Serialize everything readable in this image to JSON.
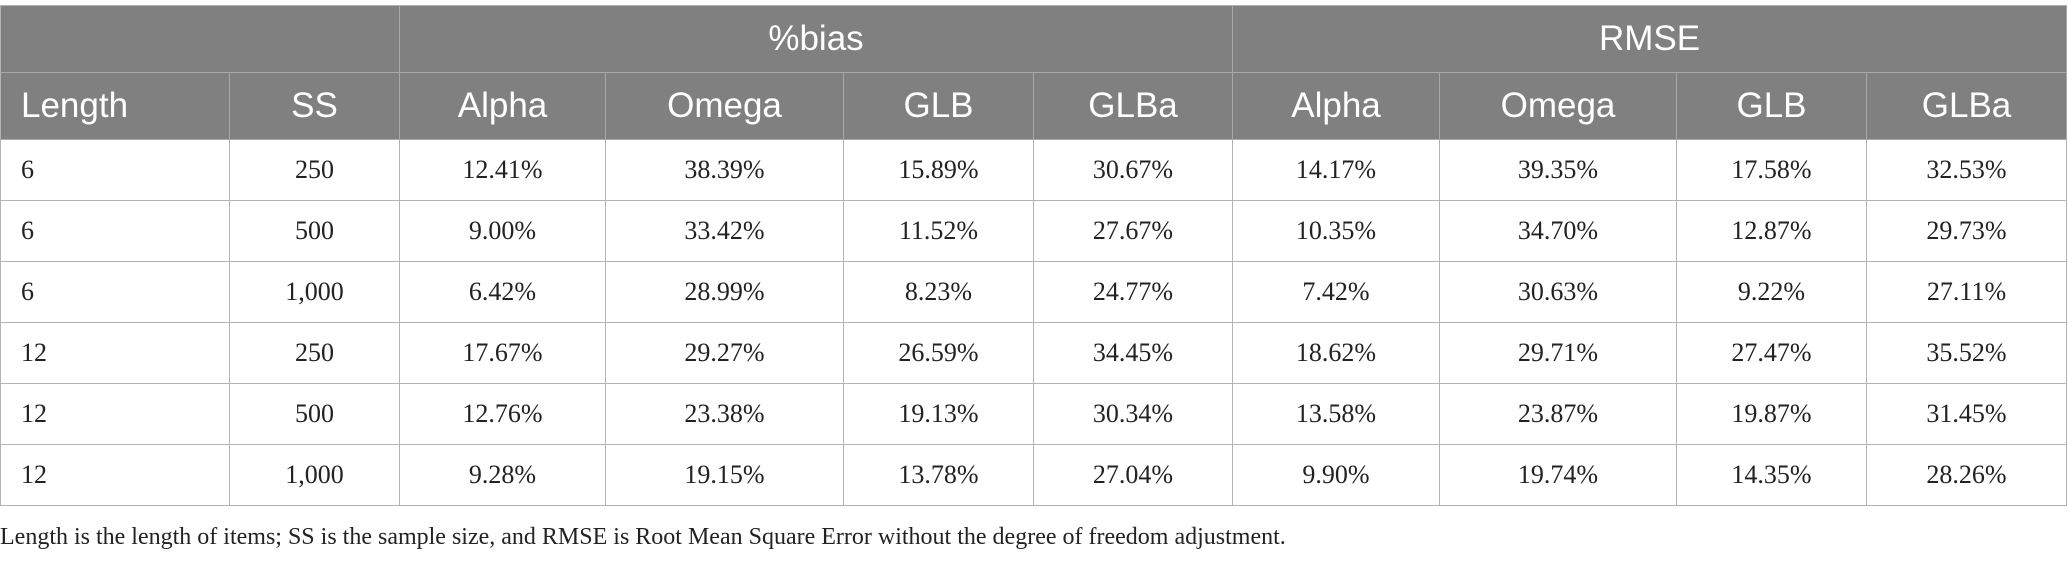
{
  "table": {
    "group_headers": {
      "blank": "",
      "bias": "%bias",
      "rmse": "RMSE"
    },
    "columns": [
      "Length",
      "SS",
      "Alpha",
      "Omega",
      "GLB",
      "GLBa",
      "Alpha",
      "Omega",
      "GLB",
      "GLBa"
    ],
    "rows": [
      [
        "6",
        "250",
        "12.41%",
        "38.39%",
        "15.89%",
        "30.67%",
        "14.17%",
        "39.35%",
        "17.58%",
        "32.53%"
      ],
      [
        "6",
        "500",
        "9.00%",
        "33.42%",
        "11.52%",
        "27.67%",
        "10.35%",
        "34.70%",
        "12.87%",
        "29.73%"
      ],
      [
        "6",
        "1,000",
        "6.42%",
        "28.99%",
        "8.23%",
        "24.77%",
        "7.42%",
        "30.63%",
        "9.22%",
        "27.11%"
      ],
      [
        "12",
        "250",
        "17.67%",
        "29.27%",
        "26.59%",
        "34.45%",
        "18.62%",
        "29.71%",
        "27.47%",
        "35.52%"
      ],
      [
        "12",
        "500",
        "12.76%",
        "23.38%",
        "19.13%",
        "30.34%",
        "13.58%",
        "23.87%",
        "19.87%",
        "31.45%"
      ],
      [
        "12",
        "1,000",
        "9.28%",
        "19.15%",
        "13.78%",
        "27.04%",
        "9.90%",
        "19.74%",
        "14.35%",
        "28.26%"
      ]
    ]
  },
  "footnote": "Length is the length of items; SS is the sample size, and RMSE is Root Mean Square Error without the degree of freedom adjustment.",
  "colors": {
    "header_bg": "#808080",
    "header_text": "#ffffff",
    "grid": "#b3b3b3"
  }
}
